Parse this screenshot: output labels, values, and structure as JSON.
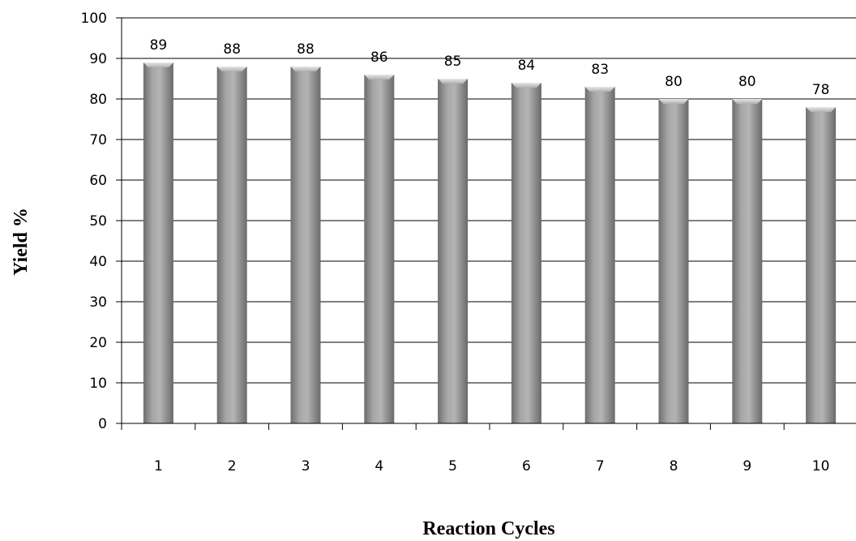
{
  "chart_data": {
    "type": "bar",
    "title": "",
    "xlabel": "Reaction Cycles",
    "ylabel": "Yield  %",
    "categories": [
      "1",
      "2",
      "3",
      "4",
      "5",
      "6",
      "7",
      "8",
      "9",
      "10"
    ],
    "values": [
      89,
      88,
      88,
      86,
      85,
      84,
      83,
      80,
      80,
      78
    ],
    "data_labels": [
      "89",
      "88",
      "88",
      "86",
      "85",
      "84",
      "83",
      "80",
      "80",
      "78"
    ],
    "ylim": [
      0,
      100
    ],
    "yticks": [
      0,
      10,
      20,
      30,
      40,
      50,
      60,
      70,
      80,
      90,
      100
    ],
    "grid": true,
    "legend": "none",
    "bar_color": "#8c8c8c"
  }
}
